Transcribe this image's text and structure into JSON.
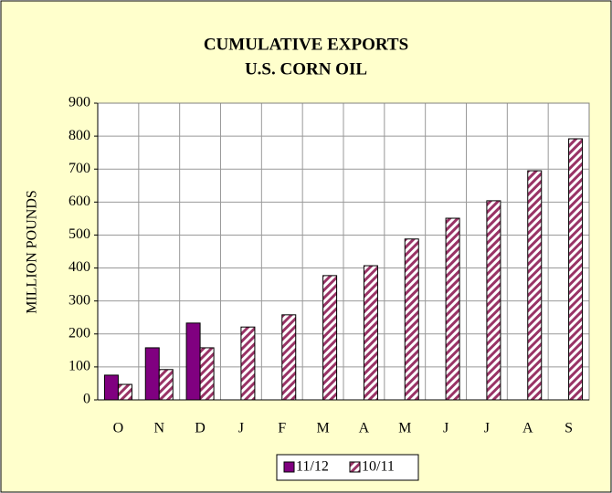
{
  "chart_data": {
    "type": "bar",
    "title": "CUMULATIVE EXPORTS",
    "subtitle": "U.S. CORN OIL",
    "y_label": "MILLION POUNDS",
    "categories": [
      "O",
      "N",
      "D",
      "J",
      "F",
      "M",
      "A",
      "M",
      "J",
      "J",
      "A",
      "S"
    ],
    "series": [
      {
        "name": "11/12",
        "color": "#800080",
        "hatch": false,
        "values": [
          75,
          158,
          233,
          null,
          null,
          null,
          null,
          null,
          null,
          null,
          null,
          null
        ]
      },
      {
        "name": "10/11",
        "color": "#993366",
        "hatch": true,
        "values": [
          47,
          92,
          158,
          221,
          258,
          377,
          407,
          488,
          551,
          604,
          695,
          792
        ]
      }
    ],
    "ylim": [
      0,
      900
    ],
    "yticks": [
      0,
      100,
      200,
      300,
      400,
      500,
      600,
      700,
      800,
      900
    ],
    "grid": true,
    "legend": "bottom"
  }
}
